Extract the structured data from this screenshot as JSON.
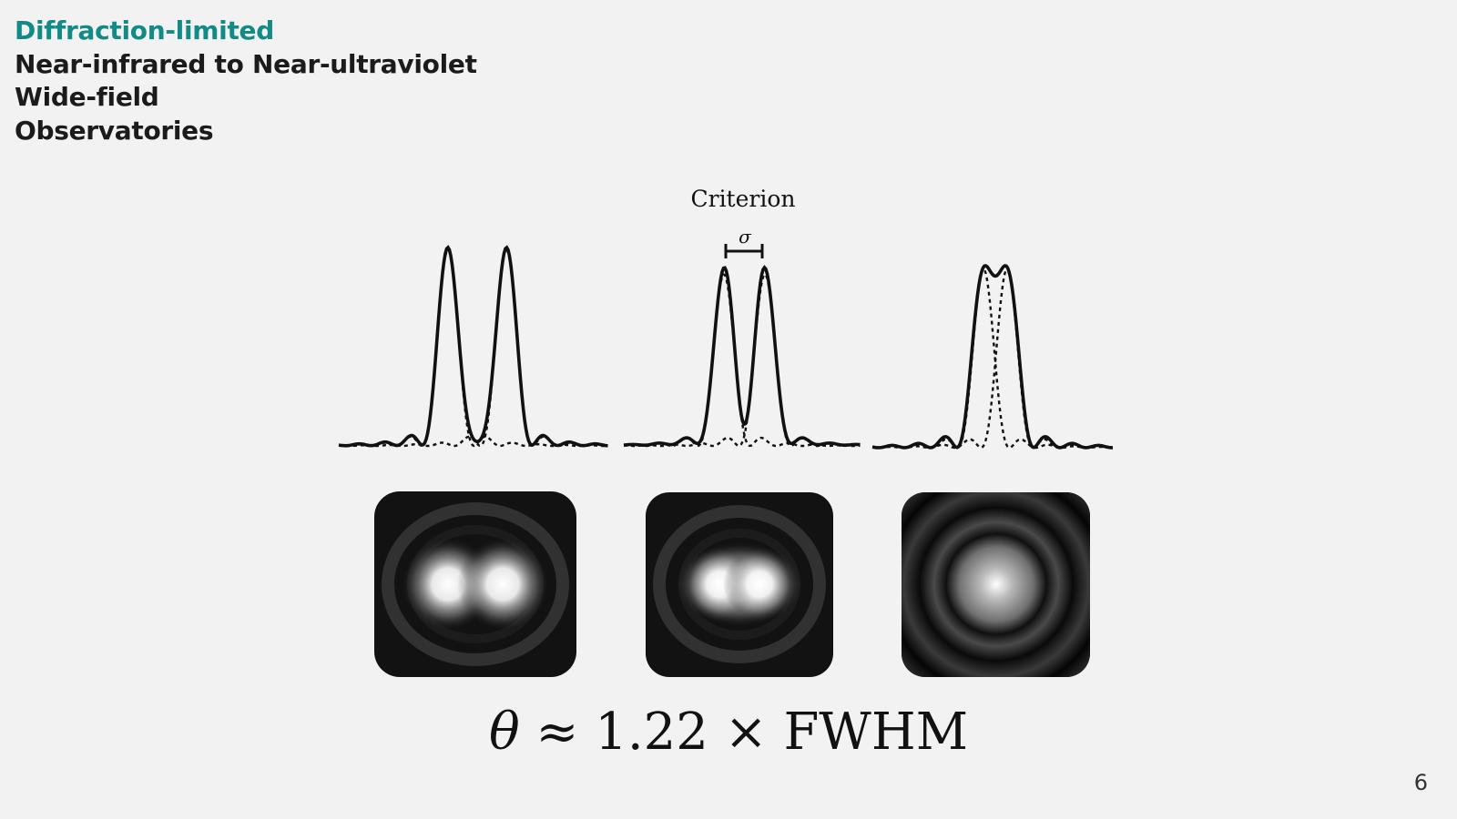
{
  "slide": {
    "headings": [
      "Diffraction-limited",
      "Near-infrared to Near-ultraviolet",
      "Wide-field",
      "Observatories"
    ],
    "accent_color": "#128a85",
    "text_color": "#1b1b1b",
    "page_number": "6"
  },
  "figure": {
    "label": "Criterion",
    "separation_symbol": "σ",
    "panels": [
      {
        "case": "resolved",
        "spot": "two-separate-airy-disks"
      },
      {
        "case": "criterion",
        "spot": "two-merging-airy-disks"
      },
      {
        "case": "unresolved",
        "spot": "single-airy-disk"
      }
    ]
  },
  "formula": {
    "theta": "θ",
    "approx": "≈",
    "value": "1.22",
    "times": "×",
    "quantity": "FWHM"
  }
}
